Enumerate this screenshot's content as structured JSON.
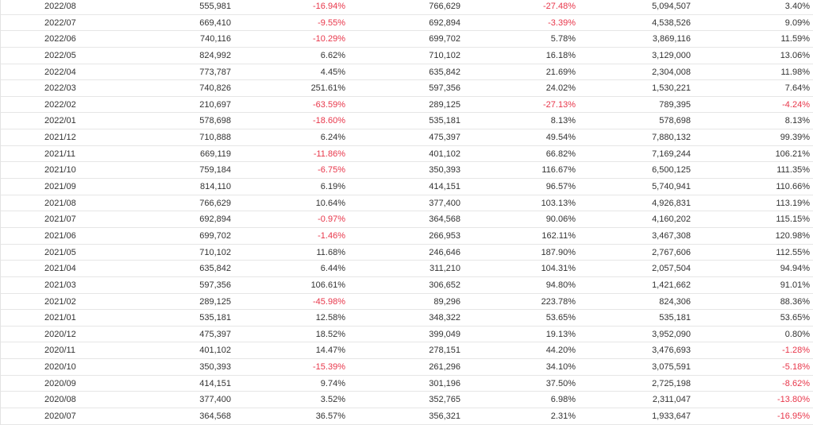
{
  "colors": {
    "negative": "#e8364a",
    "text": "#333333",
    "grid": "#e6e6e6"
  },
  "rows": [
    [
      "2022/08",
      "555,981",
      "-16.94%",
      "766,629",
      "-27.48%",
      "5,094,507",
      "3.40%"
    ],
    [
      "2022/07",
      "669,410",
      "-9.55%",
      "692,894",
      "-3.39%",
      "4,538,526",
      "9.09%"
    ],
    [
      "2022/06",
      "740,116",
      "-10.29%",
      "699,702",
      "5.78%",
      "3,869,116",
      "11.59%"
    ],
    [
      "2022/05",
      "824,992",
      "6.62%",
      "710,102",
      "16.18%",
      "3,129,000",
      "13.06%"
    ],
    [
      "2022/04",
      "773,787",
      "4.45%",
      "635,842",
      "21.69%",
      "2,304,008",
      "11.98%"
    ],
    [
      "2022/03",
      "740,826",
      "251.61%",
      "597,356",
      "24.02%",
      "1,530,221",
      "7.64%"
    ],
    [
      "2022/02",
      "210,697",
      "-63.59%",
      "289,125",
      "-27.13%",
      "789,395",
      "-4.24%"
    ],
    [
      "2022/01",
      "578,698",
      "-18.60%",
      "535,181",
      "8.13%",
      "578,698",
      "8.13%"
    ],
    [
      "2021/12",
      "710,888",
      "6.24%",
      "475,397",
      "49.54%",
      "7,880,132",
      "99.39%"
    ],
    [
      "2021/11",
      "669,119",
      "-11.86%",
      "401,102",
      "66.82%",
      "7,169,244",
      "106.21%"
    ],
    [
      "2021/10",
      "759,184",
      "-6.75%",
      "350,393",
      "116.67%",
      "6,500,125",
      "111.35%"
    ],
    [
      "2021/09",
      "814,110",
      "6.19%",
      "414,151",
      "96.57%",
      "5,740,941",
      "110.66%"
    ],
    [
      "2021/08",
      "766,629",
      "10.64%",
      "377,400",
      "103.13%",
      "4,926,831",
      "113.19%"
    ],
    [
      "2021/07",
      "692,894",
      "-0.97%",
      "364,568",
      "90.06%",
      "4,160,202",
      "115.15%"
    ],
    [
      "2021/06",
      "699,702",
      "-1.46%",
      "266,953",
      "162.11%",
      "3,467,308",
      "120.98%"
    ],
    [
      "2021/05",
      "710,102",
      "11.68%",
      "246,646",
      "187.90%",
      "2,767,606",
      "112.55%"
    ],
    [
      "2021/04",
      "635,842",
      "6.44%",
      "311,210",
      "104.31%",
      "2,057,504",
      "94.94%"
    ],
    [
      "2021/03",
      "597,356",
      "106.61%",
      "306,652",
      "94.80%",
      "1,421,662",
      "91.01%"
    ],
    [
      "2021/02",
      "289,125",
      "-45.98%",
      "89,296",
      "223.78%",
      "824,306",
      "88.36%"
    ],
    [
      "2021/01",
      "535,181",
      "12.58%",
      "348,322",
      "53.65%",
      "535,181",
      "53.65%"
    ],
    [
      "2020/12",
      "475,397",
      "18.52%",
      "399,049",
      "19.13%",
      "3,952,090",
      "0.80%"
    ],
    [
      "2020/11",
      "401,102",
      "14.47%",
      "278,151",
      "44.20%",
      "3,476,693",
      "-1.28%"
    ],
    [
      "2020/10",
      "350,393",
      "-15.39%",
      "261,296",
      "34.10%",
      "3,075,591",
      "-5.18%"
    ],
    [
      "2020/09",
      "414,151",
      "9.74%",
      "301,196",
      "37.50%",
      "2,725,198",
      "-8.62%"
    ],
    [
      "2020/08",
      "377,400",
      "3.52%",
      "352,765",
      "6.98%",
      "2,311,047",
      "-13.80%"
    ],
    [
      "2020/07",
      "364,568",
      "36.57%",
      "356,321",
      "2.31%",
      "1,933,647",
      "-16.95%"
    ]
  ]
}
